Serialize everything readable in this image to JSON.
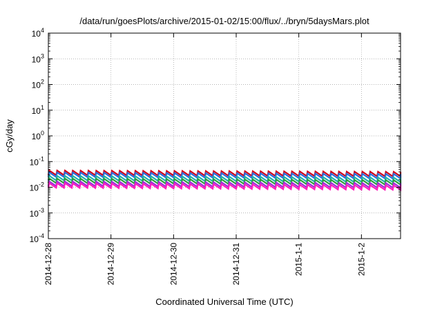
{
  "chart_data": {
    "type": "line",
    "title": "/data/run/goesPlots/archive/2015-01-02/15:00/flux/../bryn/5daysMars.plot",
    "xlabel": "Coordinated Universal Time (UTC)",
    "ylabel": "cGy/day",
    "yscale": "log",
    "ylim": [
      0.0001,
      10000
    ],
    "y_ticks": [
      {
        "base": "10",
        "exp": "-4",
        "value": 0.0001
      },
      {
        "base": "10",
        "exp": "-3",
        "value": 0.001
      },
      {
        "base": "10",
        "exp": "-2",
        "value": 0.01
      },
      {
        "base": "10",
        "exp": "-1",
        "value": 0.1
      },
      {
        "base": "10",
        "exp": "0",
        "value": 1
      },
      {
        "base": "10",
        "exp": "1",
        "value": 10
      },
      {
        "base": "10",
        "exp": "2",
        "value": 100
      },
      {
        "base": "10",
        "exp": "3",
        "value": 1000
      },
      {
        "base": "10",
        "exp": "4",
        "value": 10000
      }
    ],
    "xlim": [
      "2014-12-28T00:00",
      "2015-01-02T15:00"
    ],
    "x_ticks": [
      {
        "label": "2014-12-28",
        "value": "2014-12-28T00:00"
      },
      {
        "label": "2014-12-29",
        "value": "2014-12-29T00:00"
      },
      {
        "label": "2014-12-30",
        "value": "2014-12-30T00:00"
      },
      {
        "label": "2014-12-31",
        "value": "2014-12-31T00:00"
      },
      {
        "label": "2015-1-1",
        "value": "2015-01-01T00:00"
      },
      {
        "label": "2015-1-2",
        "value": "2015-01-02T00:00"
      }
    ],
    "grid": true,
    "legend": "none",
    "sawtooth_period_hours": 3,
    "series": [
      {
        "color": "#d0021b",
        "start_peak": 0.045,
        "end_peak": 0.04,
        "trough_ratio": 0.66
      },
      {
        "color": "#2a6fdb",
        "start_peak": 0.038,
        "end_peak": 0.033,
        "trough_ratio": 0.66
      },
      {
        "color": "#20b2aa",
        "start_peak": 0.028,
        "end_peak": 0.024,
        "trough_ratio": 0.66
      },
      {
        "color": "#2e9e3e",
        "start_peak": 0.022,
        "end_peak": 0.019,
        "trough_ratio": 0.66
      },
      {
        "color": "#9b30d9",
        "start_peak": 0.017,
        "end_peak": 0.0145,
        "trough_ratio": 0.66
      },
      {
        "color": "#ff1fbf",
        "start_peak": 0.0145,
        "end_peak": 0.012,
        "trough_ratio": 0.66
      }
    ]
  }
}
